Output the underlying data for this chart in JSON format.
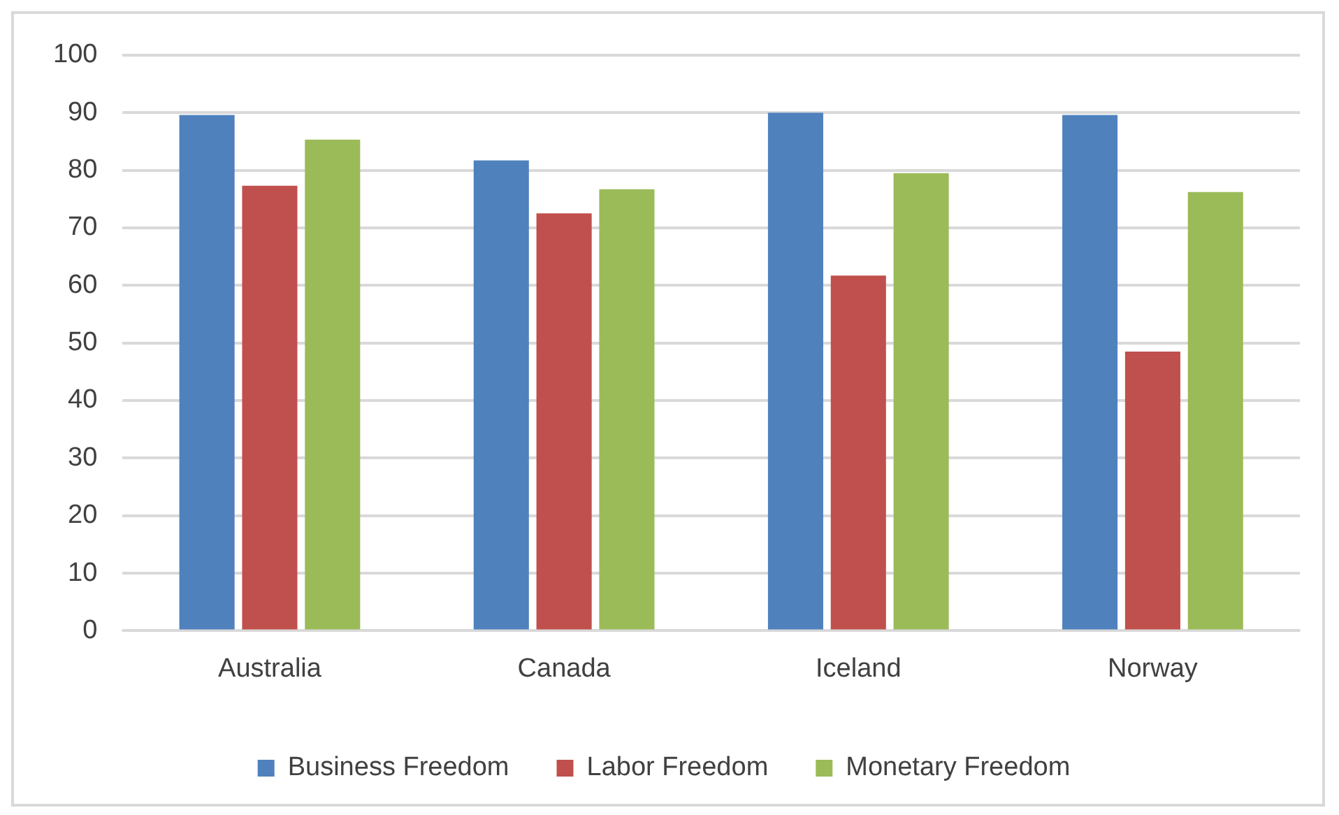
{
  "chart_data": {
    "type": "bar",
    "categories": [
      "Australia",
      "Canada",
      "Iceland",
      "Norway"
    ],
    "series": [
      {
        "name": "Business Freedom",
        "color": "#4f81bd",
        "values": [
          89.6,
          81.7,
          90,
          89.6
        ]
      },
      {
        "name": "Labor Freedom",
        "color": "#c0504d",
        "values": [
          77.3,
          72.5,
          61.7,
          48.5
        ]
      },
      {
        "name": "Monetary Freedom",
        "color": "#9bbb59",
        "values": [
          85.3,
          76.7,
          79.5,
          76.2
        ]
      }
    ],
    "ylim": [
      0,
      100
    ],
    "yticks": [
      0,
      10,
      20,
      30,
      40,
      50,
      60,
      70,
      80,
      90,
      100
    ],
    "grid": "y",
    "legend": "bottom"
  }
}
